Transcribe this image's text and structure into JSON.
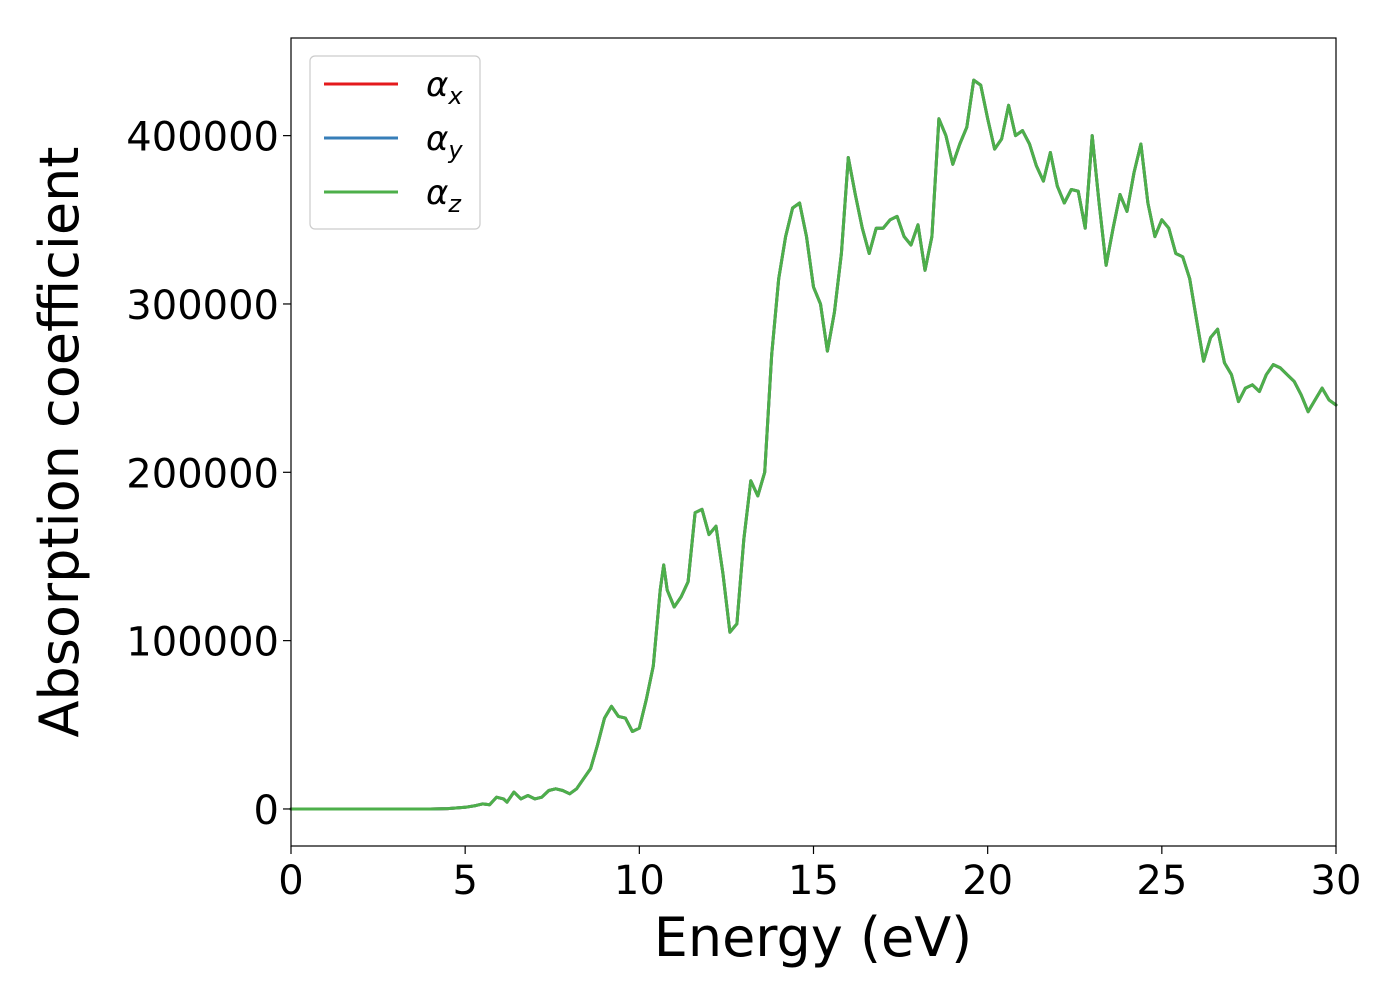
{
  "chart_data": {
    "type": "line",
    "title": "",
    "xlabel": "Energy (eV)",
    "ylabel": "Absorption coefficient",
    "xlim": [
      0,
      30
    ],
    "ylim": [
      -22000,
      458000
    ],
    "xticks": [
      0,
      5,
      10,
      15,
      20,
      25,
      30
    ],
    "xtick_labels": [
      "0",
      "5",
      "10",
      "15",
      "20",
      "25",
      "30"
    ],
    "yticks": [
      0,
      100000,
      200000,
      300000,
      400000
    ],
    "ytick_labels": [
      "0",
      "100000",
      "200000",
      "300000",
      "400000"
    ],
    "grid": false,
    "legend_position": "top-left",
    "x": [
      0,
      1,
      2,
      3,
      4,
      4.5,
      5,
      5.3,
      5.5,
      5.7,
      5.9,
      6.1,
      6.2,
      6.4,
      6.6,
      6.8,
      7.0,
      7.2,
      7.4,
      7.6,
      7.8,
      8.0,
      8.2,
      8.4,
      8.6,
      8.8,
      9.0,
      9.2,
      9.4,
      9.6,
      9.8,
      10.0,
      10.2,
      10.4,
      10.6,
      10.7,
      10.8,
      11.0,
      11.2,
      11.4,
      11.6,
      11.8,
      12.0,
      12.2,
      12.4,
      12.6,
      12.8,
      13.0,
      13.2,
      13.4,
      13.6,
      13.8,
      14.0,
      14.2,
      14.4,
      14.6,
      14.8,
      15.0,
      15.2,
      15.4,
      15.6,
      15.8,
      16.0,
      16.2,
      16.4,
      16.6,
      16.8,
      17.0,
      17.2,
      17.4,
      17.6,
      17.8,
      18.0,
      18.2,
      18.4,
      18.6,
      18.8,
      19.0,
      19.2,
      19.4,
      19.6,
      19.8,
      20.0,
      20.2,
      20.4,
      20.6,
      20.8,
      21.0,
      21.2,
      21.4,
      21.6,
      21.8,
      22.0,
      22.2,
      22.4,
      22.6,
      22.8,
      23.0,
      23.2,
      23.4,
      23.6,
      23.8,
      24.0,
      24.2,
      24.4,
      24.6,
      24.8,
      25.0,
      25.2,
      25.4,
      25.6,
      25.8,
      26.0,
      26.2,
      26.4,
      26.6,
      26.8,
      27.0,
      27.2,
      27.4,
      27.6,
      27.8,
      28.0,
      28.2,
      28.4,
      28.6,
      28.8,
      29.0,
      29.2,
      29.4,
      29.6,
      29.8,
      30.0
    ],
    "series": [
      {
        "name": "α_x",
        "color": "#e41a1c",
        "y": [
          0,
          0,
          0,
          0,
          0,
          200,
          1000,
          2000,
          3000,
          2500,
          7000,
          6000,
          4000,
          10000,
          6000,
          8000,
          6000,
          7000,
          11000,
          12000,
          11000,
          9000,
          12000,
          18000,
          24000,
          38000,
          54000,
          61000,
          55000,
          54000,
          46000,
          48000,
          65000,
          85000,
          130000,
          145000,
          130000,
          120000,
          126000,
          135000,
          176000,
          178000,
          163000,
          168000,
          140000,
          105000,
          110000,
          160000,
          195000,
          186000,
          200000,
          270000,
          315000,
          340000,
          357000,
          360000,
          340000,
          310000,
          300000,
          272000,
          295000,
          330000,
          387000,
          365000,
          345000,
          330000,
          345000,
          345000,
          350000,
          352000,
          340000,
          335000,
          347000,
          320000,
          340000,
          410000,
          400000,
          383000,
          395000,
          405000,
          433000,
          430000,
          410000,
          392000,
          398000,
          418000,
          400000,
          403000,
          395000,
          382000,
          373000,
          390000,
          370000,
          360000,
          368000,
          367000,
          345000,
          400000,
          360000,
          323000,
          345000,
          365000,
          355000,
          378000,
          395000,
          360000,
          340000,
          350000,
          345000,
          330000,
          328000,
          315000,
          290000,
          266000,
          280000,
          285000,
          265000,
          258000,
          242000,
          250000,
          252000,
          248000,
          258000,
          264000,
          262000,
          258000,
          254000,
          246000,
          236000,
          243000,
          250000,
          243000,
          240000
        ]
      },
      {
        "name": "α_y",
        "color": "#377eb8",
        "y": [
          0,
          0,
          0,
          0,
          0,
          200,
          1000,
          2000,
          3000,
          2500,
          7000,
          6000,
          4000,
          10000,
          6000,
          8000,
          6000,
          7000,
          11000,
          12000,
          11000,
          9000,
          12000,
          18000,
          24000,
          38000,
          54000,
          61000,
          55000,
          54000,
          46000,
          48000,
          65000,
          85000,
          130000,
          145000,
          130000,
          120000,
          126000,
          135000,
          176000,
          178000,
          163000,
          168000,
          140000,
          105000,
          110000,
          160000,
          195000,
          186000,
          200000,
          270000,
          315000,
          340000,
          357000,
          360000,
          340000,
          310000,
          300000,
          272000,
          295000,
          330000,
          387000,
          365000,
          345000,
          330000,
          345000,
          345000,
          350000,
          352000,
          340000,
          335000,
          347000,
          320000,
          340000,
          410000,
          400000,
          383000,
          395000,
          405000,
          433000,
          430000,
          410000,
          392000,
          398000,
          418000,
          400000,
          403000,
          395000,
          382000,
          373000,
          390000,
          370000,
          360000,
          368000,
          367000,
          345000,
          400000,
          360000,
          323000,
          345000,
          365000,
          355000,
          378000,
          395000,
          360000,
          340000,
          350000,
          345000,
          330000,
          328000,
          315000,
          290000,
          266000,
          280000,
          285000,
          265000,
          258000,
          242000,
          250000,
          252000,
          248000,
          258000,
          264000,
          262000,
          258000,
          254000,
          246000,
          236000,
          243000,
          250000,
          243000,
          240000
        ]
      },
      {
        "name": "α_z",
        "color": "#4daf4a",
        "y": [
          0,
          0,
          0,
          0,
          0,
          200,
          1000,
          2000,
          3000,
          2500,
          7000,
          6000,
          4000,
          10000,
          6000,
          8000,
          6000,
          7000,
          11000,
          12000,
          11000,
          9000,
          12000,
          18000,
          24000,
          38000,
          54000,
          61000,
          55000,
          54000,
          46000,
          48000,
          65000,
          85000,
          130000,
          145000,
          130000,
          120000,
          126000,
          135000,
          176000,
          178000,
          163000,
          168000,
          140000,
          105000,
          110000,
          160000,
          195000,
          186000,
          200000,
          270000,
          315000,
          340000,
          357000,
          360000,
          340000,
          310000,
          300000,
          272000,
          295000,
          330000,
          387000,
          365000,
          345000,
          330000,
          345000,
          345000,
          350000,
          352000,
          340000,
          335000,
          347000,
          320000,
          340000,
          410000,
          400000,
          383000,
          395000,
          405000,
          433000,
          430000,
          410000,
          392000,
          398000,
          418000,
          400000,
          403000,
          395000,
          382000,
          373000,
          390000,
          370000,
          360000,
          368000,
          367000,
          345000,
          400000,
          360000,
          323000,
          345000,
          365000,
          355000,
          378000,
          395000,
          360000,
          340000,
          350000,
          345000,
          330000,
          328000,
          315000,
          290000,
          266000,
          280000,
          285000,
          265000,
          258000,
          242000,
          250000,
          252000,
          248000,
          258000,
          264000,
          262000,
          258000,
          254000,
          246000,
          236000,
          243000,
          250000,
          243000,
          240000
        ]
      }
    ],
    "legend": [
      {
        "symbol": "α",
        "sub": "x",
        "color": "#e41a1c"
      },
      {
        "symbol": "α",
        "sub": "y",
        "color": "#377eb8"
      },
      {
        "symbol": "α",
        "sub": "z",
        "color": "#4daf4a"
      }
    ]
  }
}
